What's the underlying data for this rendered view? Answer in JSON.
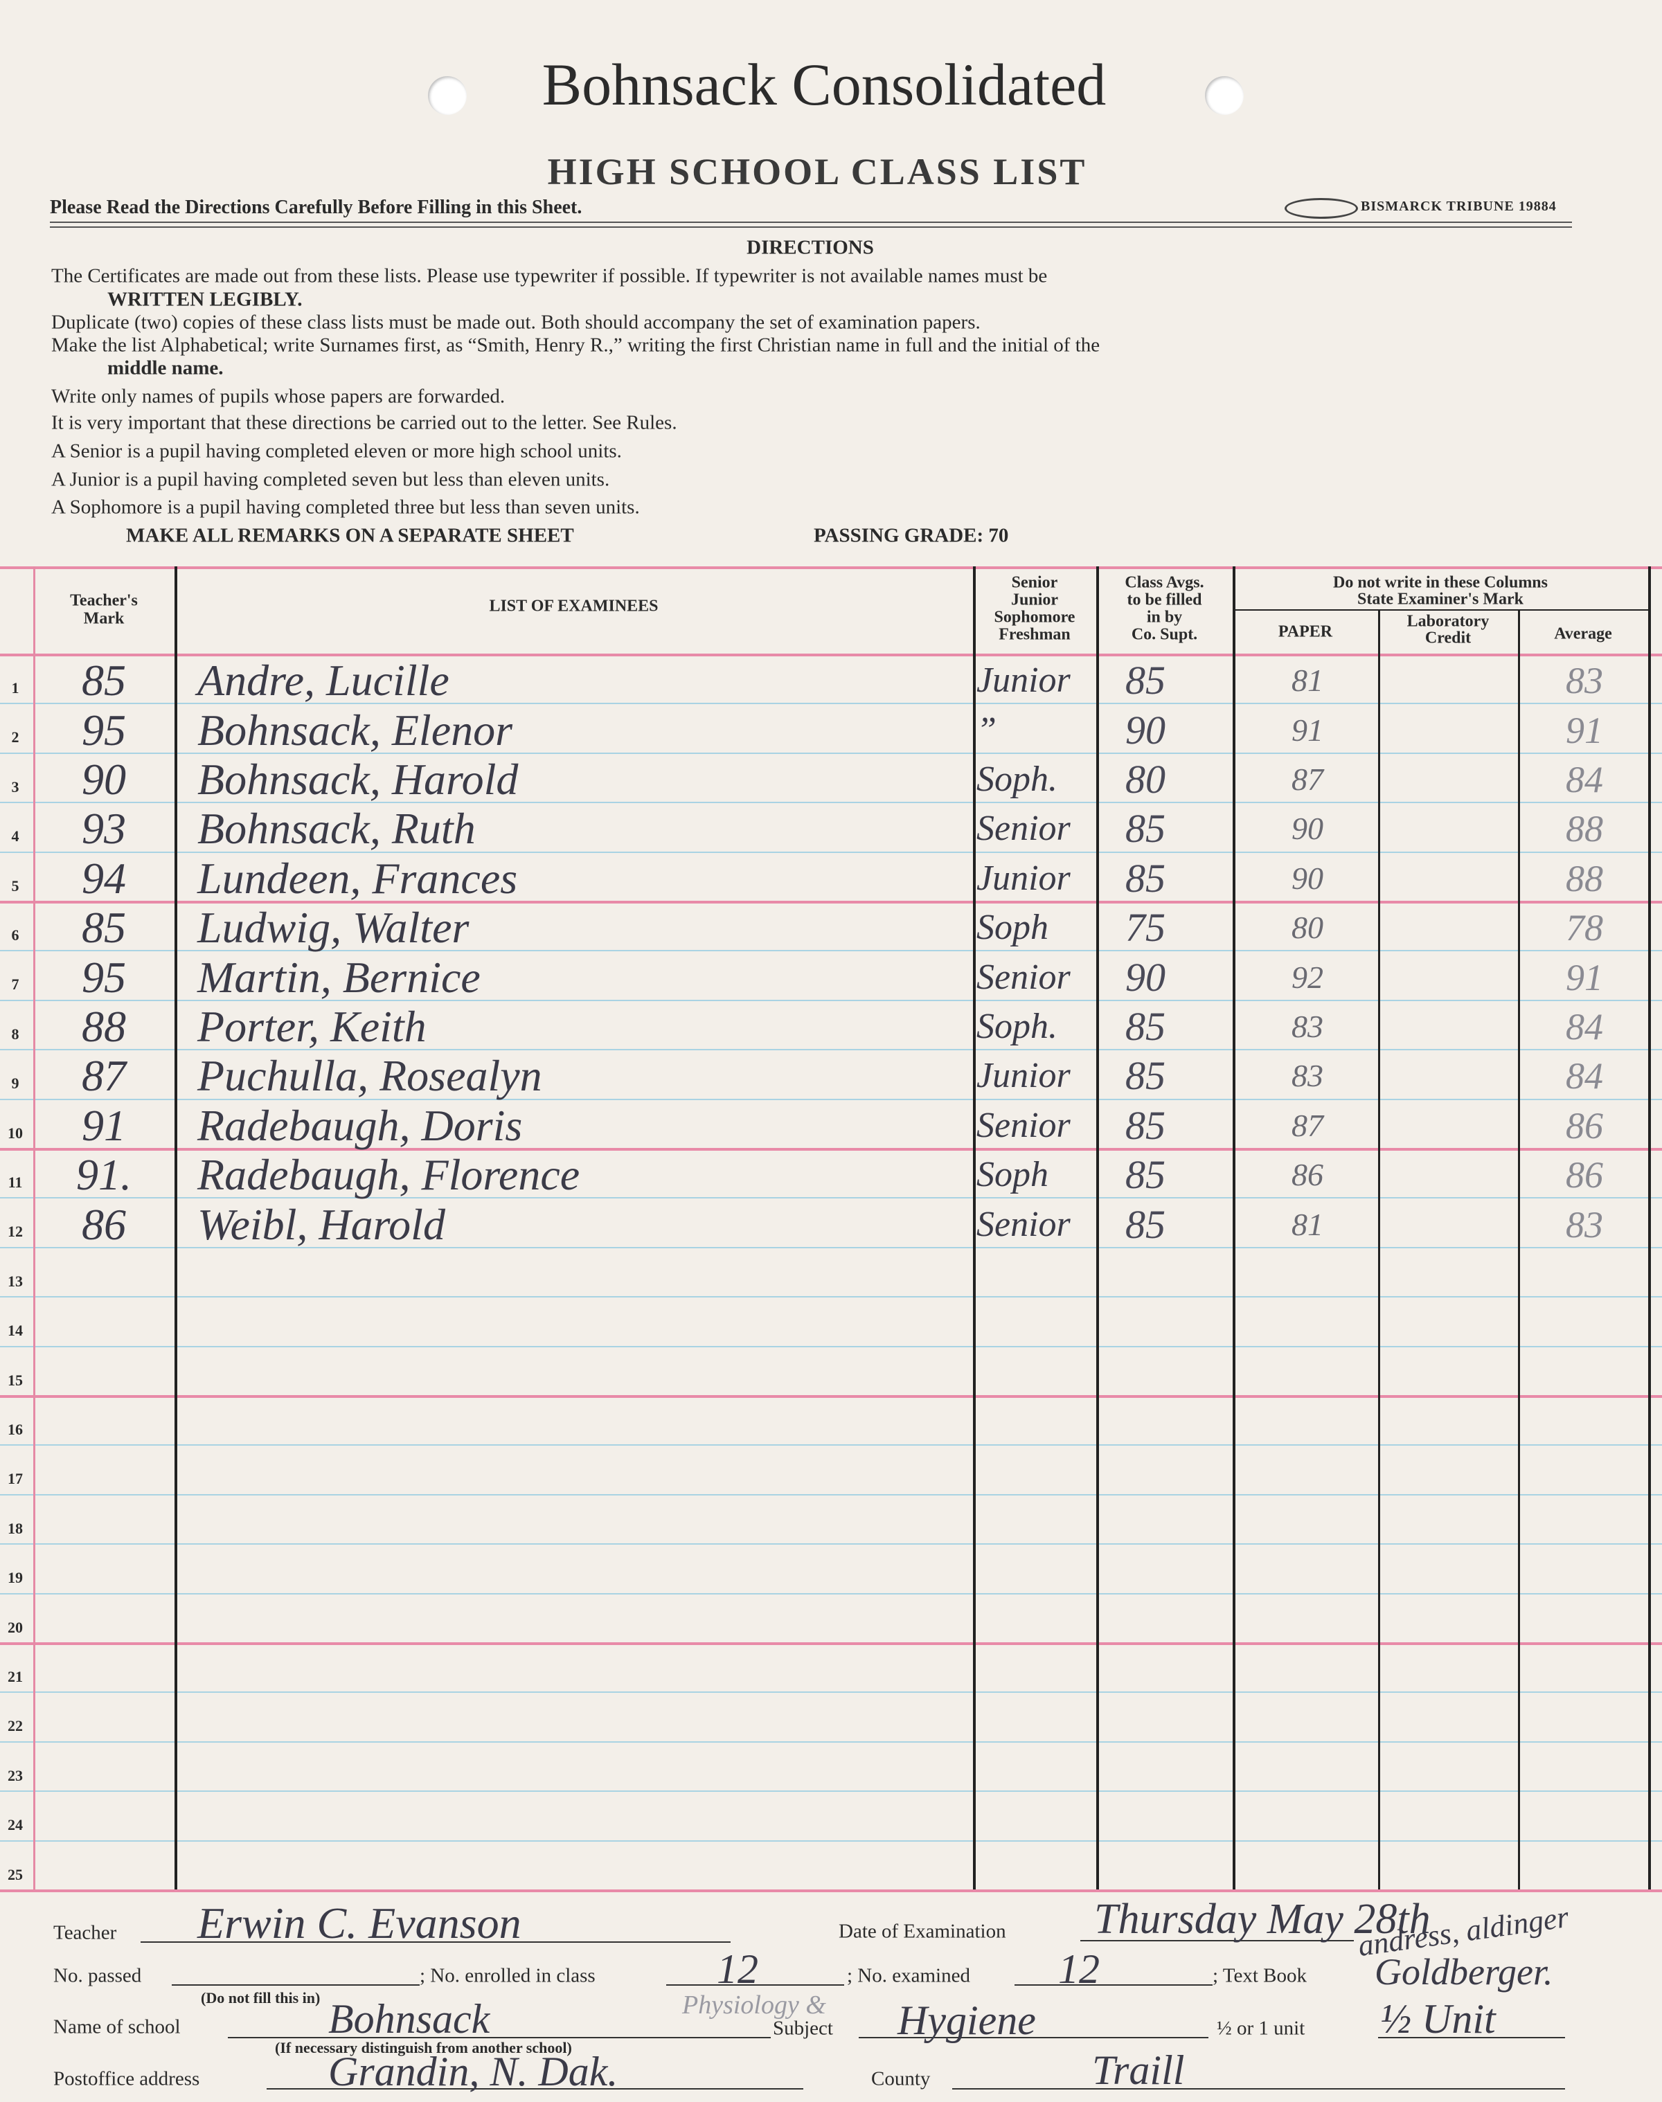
{
  "header": {
    "school": "Bohnsack Consolidated",
    "title": "HIGH SCHOOL CLASS LIST",
    "subtitle": "Please Read the Directions Carefully Before Filling in this Sheet.",
    "printer": "BISMARCK TRIBUNE 19884"
  },
  "directions": {
    "heading": "DIRECTIONS",
    "lines": [
      "The Certificates are made out from these lists.  Please use typewriter if possible.  If typewriter is not available names must be",
      "WRITTEN LEGIBLY.",
      "Duplicate (two) copies of these class lists must be made out.  Both should accompany the set of examination papers.",
      "Make the list Alphabetical; write Surnames first, as “Smith, Henry R.,” writing the first Christian name in full and the initial of the",
      "middle name.",
      "Write only names of pupils whose papers are forwarded.",
      "It is very important that these directions be carried out to the letter.  See Rules.",
      "A Senior is a pupil having completed eleven or more high school units.",
      "A Junior is a pupil having completed seven but less than eleven units.",
      "A Sophomore is a pupil having completed three but less than seven units."
    ],
    "remarks": "MAKE ALL REMARKS ON A SEPARATE SHEET",
    "passing": "PASSING GRADE: 70"
  },
  "table": {
    "headers": {
      "teacher_mark": [
        "Teacher's",
        "Mark"
      ],
      "examinees": "LIST OF EXAMINEES",
      "class_level": [
        "Senior",
        "Junior",
        "Sophomore",
        "Freshman"
      ],
      "class_avgs": [
        "Class Avgs.",
        "to be filled",
        "in by",
        "Co. Supt."
      ],
      "examiner": [
        "Do not write in these Columns",
        "State Examiner's Mark"
      ],
      "paper": "PAPER",
      "lab": [
        "Laboratory",
        "Credit"
      ],
      "average": "Average"
    },
    "row_numbers": [
      "1",
      "2",
      "3",
      "4",
      "5",
      "6",
      "7",
      "8",
      "9",
      "10",
      "11",
      "12",
      "13",
      "14",
      "15",
      "16",
      "17",
      "18",
      "19",
      "20",
      "21",
      "22",
      "23",
      "24",
      "25"
    ],
    "rows": [
      [
        "85",
        "Andre, Lucille",
        "Junior",
        "85",
        "81",
        "83"
      ],
      [
        "95",
        "Bohnsack, Elenor",
        "”",
        "90",
        "91",
        "91"
      ],
      [
        "90",
        "Bohnsack, Harold",
        "Soph.",
        "80",
        "87",
        "84"
      ],
      [
        "93",
        "Bohnsack, Ruth",
        "Senior",
        "85",
        "90",
        "88"
      ],
      [
        "94",
        "Lundeen, Frances",
        "Junior",
        "85",
        "90",
        "88"
      ],
      [
        "85",
        "Ludwig, Walter",
        "Soph",
        "75",
        "80",
        "78"
      ],
      [
        "95",
        "Martin, Bernice",
        "Senior",
        "90",
        "92",
        "91"
      ],
      [
        "88",
        "Porter, Keith",
        "Soph.",
        "85",
        "83",
        "84"
      ],
      [
        "87",
        "Puchulla, Rosealyn",
        "Junior",
        "85",
        "83",
        "84"
      ],
      [
        "91",
        "Radebaugh, Doris",
        "Senior",
        "85",
        "87",
        "86"
      ],
      [
        "91.",
        "Radebaugh, Florence",
        "Soph",
        "85",
        "86",
        "86"
      ],
      [
        "86",
        "Weibl, Harold",
        "Senior",
        "85",
        "81",
        "83"
      ]
    ]
  },
  "footer": {
    "teacher_label": "Teacher",
    "teacher": "Erwin C. Evanson",
    "date_label": "Date of Examination",
    "date": "Thursday May 28th",
    "passed_label": "No. passed",
    "passed_note": "(Do not fill this in)",
    "enrolled_label": "; No. enrolled in class",
    "enrolled": "12",
    "examined_label": "; No. examined",
    "examined": "12",
    "textbook_label": "; Text Book",
    "textbook_authors": "andress, aldinger",
    "textbook": "Goldberger.",
    "school_label": "Name of school",
    "school": "Bohnsack",
    "school_note": "(If necessary distinguish from another school)",
    "subject_label": "Subject",
    "subject_note": "Physiology &",
    "subject": "Hygiene",
    "unit_label": "½ or 1 unit",
    "unit": "½ Unit",
    "postoffice_label": "Postoffice address",
    "postoffice": "Grandin, N. Dak.",
    "county_label": "County",
    "county": "Traill"
  }
}
